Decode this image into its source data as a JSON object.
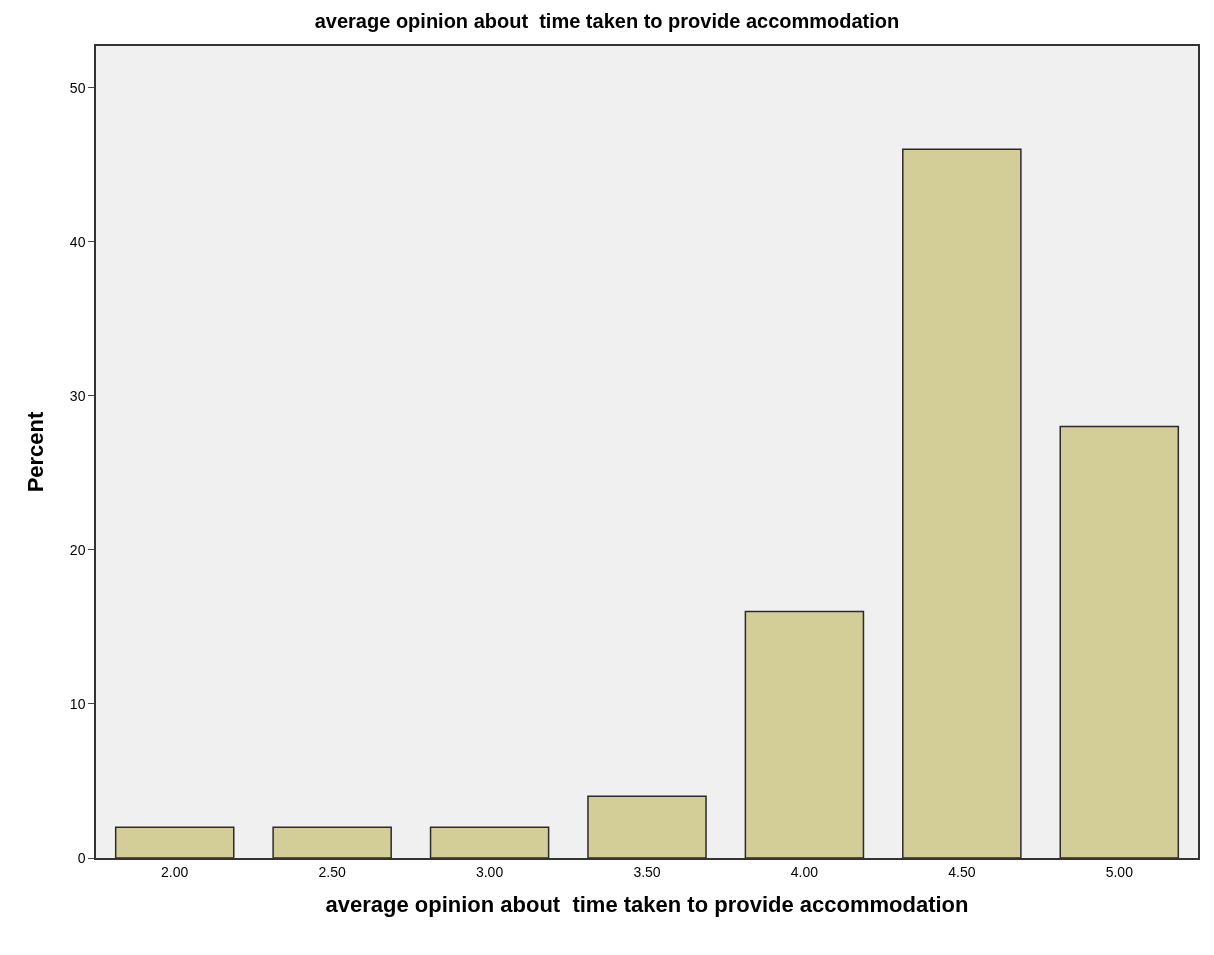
{
  "chart_data": {
    "type": "bar",
    "title": "average opinion about  time taken to provide accommodation",
    "xlabel": "average opinion about  time taken to provide accommodation",
    "ylabel": "Percent",
    "categories": [
      "2.00",
      "2.50",
      "3.00",
      "3.50",
      "4.00",
      "4.50",
      "5.00"
    ],
    "values": [
      2,
      2,
      2,
      4,
      16,
      46,
      28
    ],
    "color": "#d3ce97",
    "ylim": [
      0,
      52.7
    ],
    "yticks": [
      0,
      10,
      20,
      30,
      40,
      50
    ]
  }
}
